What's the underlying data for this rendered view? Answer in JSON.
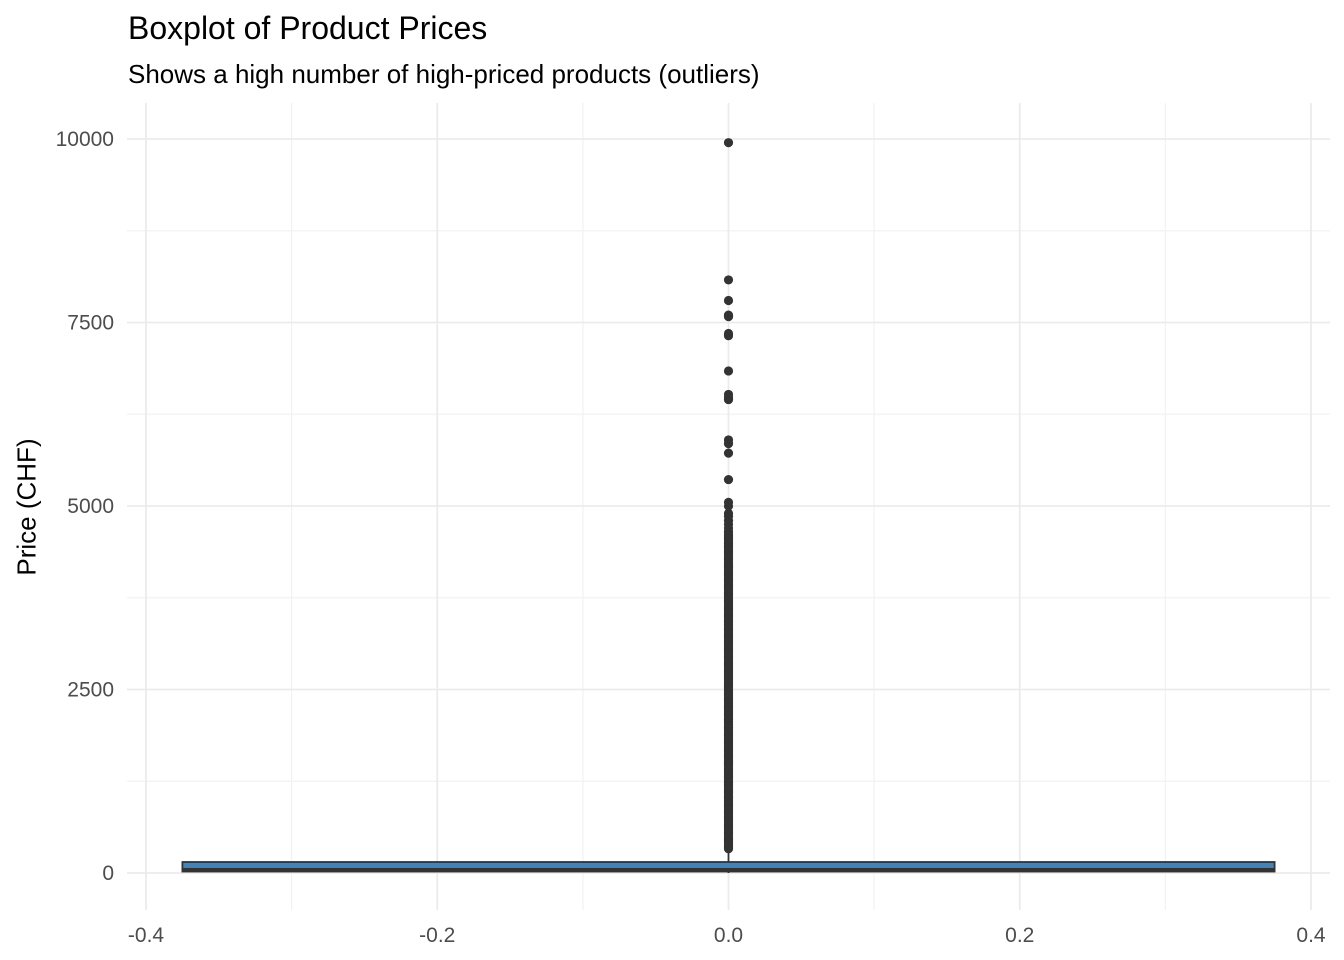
{
  "chart_data": {
    "type": "boxplot",
    "title": "Boxplot of Product Prices",
    "subtitle": "Shows a high number of high-priced products (outliers)",
    "xlabel": "",
    "ylabel": "Price (CHF)",
    "xlim": [
      -0.4,
      0.4
    ],
    "ylim": [
      0,
      10000
    ],
    "x_ticks": [
      "-0.4",
      "-0.2",
      "0.0",
      "0.2",
      "0.4"
    ],
    "x_tick_values": [
      -0.4,
      -0.2,
      0.0,
      0.2,
      0.4
    ],
    "y_ticks": [
      "0",
      "2500",
      "5000",
      "7500",
      "10000"
    ],
    "y_tick_values": [
      0,
      2500,
      5000,
      7500,
      10000
    ],
    "grid": true,
    "box": {
      "x_center": 0.0,
      "x_min": -0.375,
      "x_max": 0.375,
      "q1": 20,
      "median": 45,
      "q3": 130,
      "whisker_low": 0,
      "whisker_high": 300,
      "fill": "#4682b4",
      "line_color": "#333333"
    },
    "outliers": {
      "x": 0.0,
      "color": "#333333",
      "dense_range": [
        330,
        4600
      ],
      "values": [
        4620,
        4650,
        4700,
        4750,
        4800,
        4860,
        4900,
        5000,
        5050,
        5360,
        5720,
        5850,
        5900,
        6450,
        6480,
        6520,
        6840,
        7320,
        7350,
        7580,
        7600,
        7800,
        8080,
        9950
      ]
    }
  }
}
